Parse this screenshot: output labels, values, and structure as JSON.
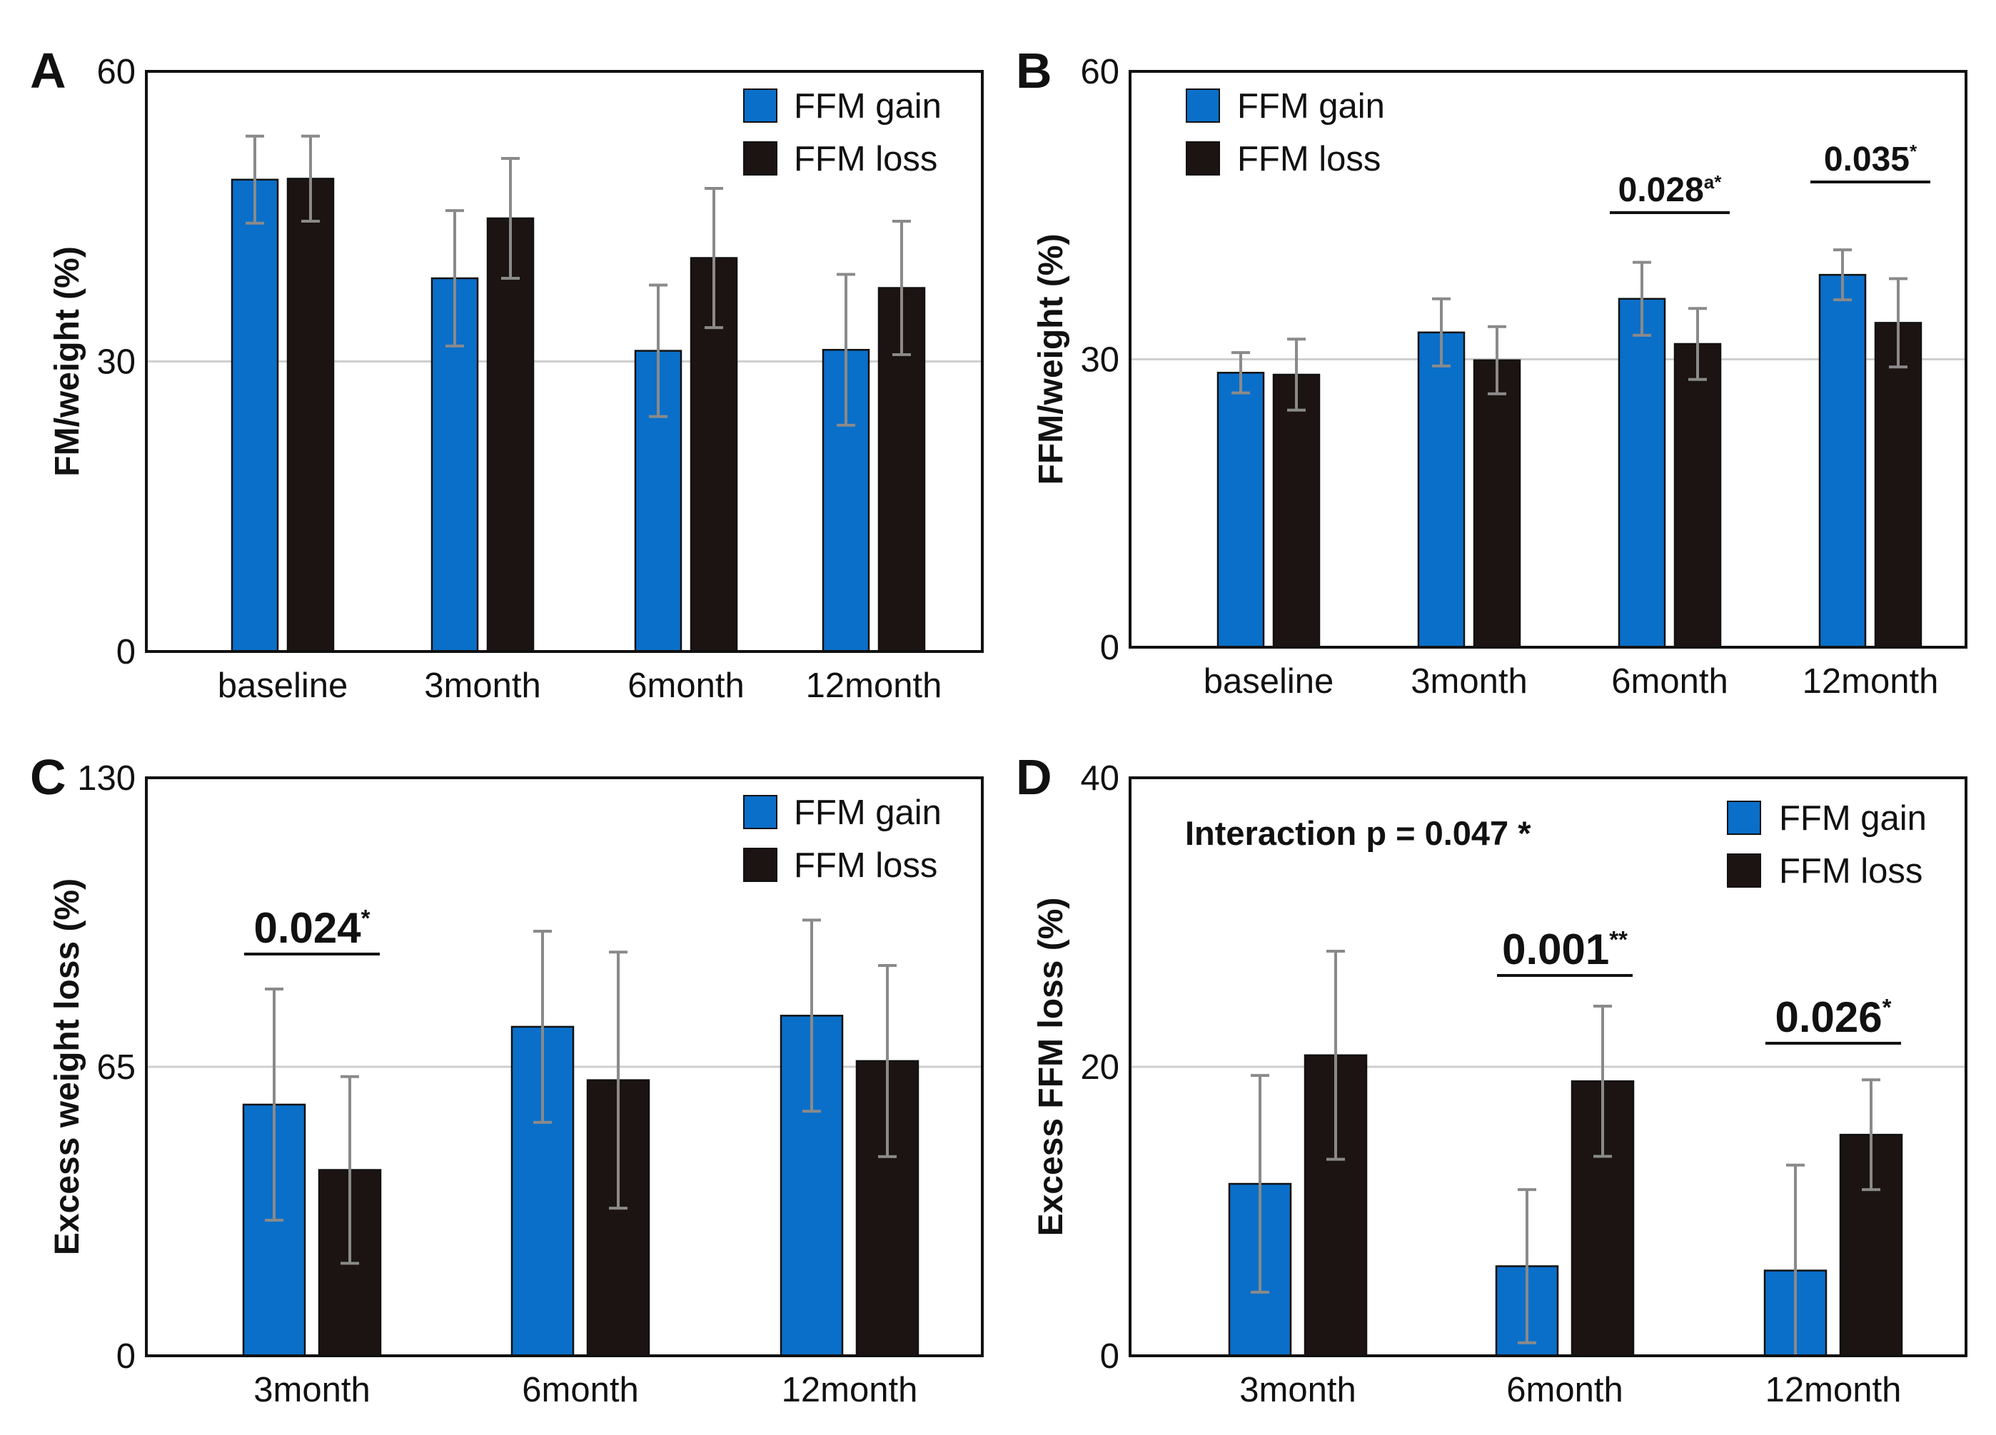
{
  "colors": {
    "gain": "#0a6fc9",
    "loss": "#1c1412",
    "error": "#8a8a8a",
    "grid": "#cfcfcf",
    "frame": "#111111"
  },
  "chart_data": [
    {
      "panel": "A",
      "type": "bar",
      "categories": [
        "baseline",
        "3month",
        "6month",
        "12month"
      ],
      "ylabel": "FM/weight (%)",
      "ylim": [
        0,
        60
      ],
      "yticks": [
        "0",
        "30",
        "60"
      ],
      "gridline": 30,
      "legend": {
        "position": "top-right",
        "entries": [
          "FFM gain",
          "FFM loss"
        ]
      },
      "series": [
        {
          "name": "FFM gain",
          "values": [
            48.8,
            38.6,
            31.1,
            31.2
          ],
          "errors": [
            4.5,
            7.0,
            6.8,
            7.8
          ]
        },
        {
          "name": "FFM loss",
          "values": [
            48.9,
            44.8,
            40.7,
            37.6
          ],
          "errors": [
            4.4,
            6.2,
            7.2,
            6.9
          ]
        }
      ],
      "annotations": []
    },
    {
      "panel": "B",
      "type": "bar",
      "categories": [
        "baseline",
        "3month",
        "6month",
        "12month"
      ],
      "ylabel": "FFM/weight (%)",
      "ylim": [
        0,
        60
      ],
      "yticks": [
        "0",
        "30",
        "60"
      ],
      "gridline": 30,
      "legend": {
        "position": "top-left",
        "entries": [
          "FFM gain",
          "FFM loss"
        ]
      },
      "series": [
        {
          "name": "FFM gain",
          "values": [
            28.6,
            32.8,
            36.3,
            38.8
          ],
          "errors": [
            2.1,
            3.5,
            3.8,
            2.6
          ]
        },
        {
          "name": "FFM loss",
          "values": [
            28.4,
            29.9,
            31.6,
            33.8
          ],
          "errors": [
            3.7,
            3.5,
            3.7,
            4.6
          ]
        }
      ],
      "annotations": [
        {
          "category_index": 2,
          "value": "0.028",
          "mark": "a*"
        },
        {
          "category_index": 3,
          "value": "0.035",
          "mark": "*"
        }
      ]
    },
    {
      "panel": "C",
      "type": "bar",
      "categories": [
        "3month",
        "6month",
        "12month"
      ],
      "ylabel": "Excess weight loss (%)",
      "ylim": [
        0,
        130
      ],
      "yticks": [
        "0",
        "65",
        "130"
      ],
      "gridline": 65,
      "legend": {
        "position": "top-right",
        "entries": [
          "FFM gain",
          "FFM loss"
        ]
      },
      "series": [
        {
          "name": "FFM gain",
          "values": [
            56.5,
            74.0,
            76.5
          ],
          "errors": [
            26.0,
            21.5,
            21.5
          ]
        },
        {
          "name": "FFM loss",
          "values": [
            41.8,
            62.0,
            66.3
          ],
          "errors": [
            21.0,
            28.8,
            21.5
          ]
        }
      ],
      "annotations": [
        {
          "category_index": 0,
          "value": "0.024",
          "mark": "*"
        }
      ]
    },
    {
      "panel": "D",
      "type": "bar",
      "categories": [
        "3month",
        "6month",
        "12month"
      ],
      "ylabel": "Excess FFM loss (%)",
      "ylim": [
        0,
        40
      ],
      "yticks": [
        "0",
        "20",
        "40"
      ],
      "gridline": 20,
      "legend": {
        "position": "top-right",
        "entries": [
          "FFM gain",
          "FFM loss"
        ]
      },
      "note": "Interaction p = 0.047 *",
      "series": [
        {
          "name": "FFM gain",
          "values": [
            11.9,
            6.2,
            5.9
          ],
          "errors": [
            7.5,
            5.3,
            7.3
          ]
        },
        {
          "name": "FFM loss",
          "values": [
            20.8,
            19.0,
            15.3
          ],
          "errors": [
            7.2,
            5.2,
            3.8
          ]
        }
      ],
      "annotations": [
        {
          "category_index": 1,
          "value": "0.001",
          "mark": "**"
        },
        {
          "category_index": 2,
          "value": "0.026",
          "mark": "*"
        }
      ]
    }
  ]
}
